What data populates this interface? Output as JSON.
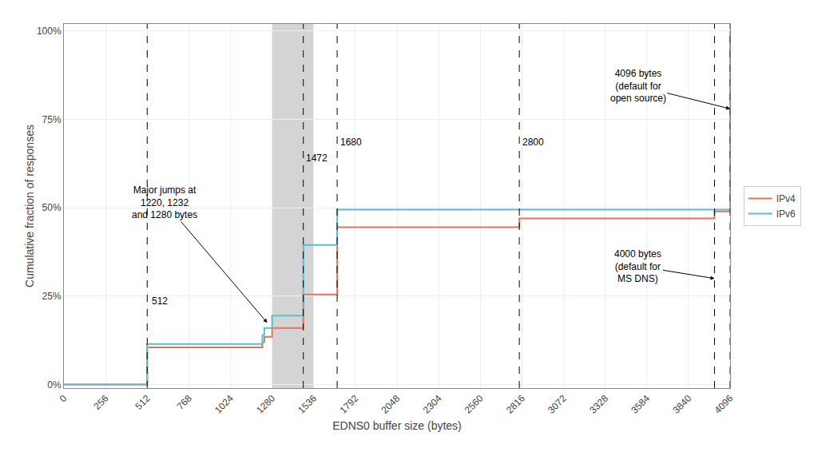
{
  "chart_data": {
    "type": "line",
    "xlabel": "EDNS0 buffer size (bytes)",
    "ylabel": "Cumulative fraction of responses",
    "series": [
      {
        "name": "IPv4",
        "color": "#E8735A",
        "x": [
          0,
          512,
          512,
          1220,
          1220,
          1232,
          1232,
          1280,
          1280,
          1472,
          1472,
          1680,
          1680,
          2800,
          2800,
          4000,
          4000,
          4096,
          4096
        ],
        "values": [
          0.0,
          0.0,
          0.105,
          0.105,
          0.12,
          0.12,
          0.135,
          0.135,
          0.16,
          0.16,
          0.255,
          0.255,
          0.445,
          0.445,
          0.47,
          0.47,
          0.49,
          0.49,
          1.0
        ]
      },
      {
        "name": "IPv6",
        "color": "#5BBCD6",
        "x": [
          0,
          512,
          512,
          1220,
          1220,
          1232,
          1232,
          1280,
          1280,
          1472,
          1472,
          1680,
          1680,
          2800,
          2800,
          4096,
          4096
        ],
        "values": [
          0.0,
          0.0,
          0.115,
          0.115,
          0.14,
          0.14,
          0.16,
          0.16,
          0.195,
          0.195,
          0.395,
          0.395,
          0.495,
          0.495,
          0.495,
          0.495,
          1.0
        ]
      }
    ],
    "xlim": [
      0,
      4096
    ],
    "ylim": [
      -0.01,
      1.02
    ],
    "xticks": [
      0,
      256,
      512,
      768,
      1024,
      1280,
      1536,
      1792,
      2048,
      2304,
      2560,
      2816,
      3072,
      3328,
      3584,
      3840,
      4096
    ],
    "yticks": [
      {
        "value": 0.0,
        "label": "0%"
      },
      {
        "value": 0.25,
        "label": "25%"
      },
      {
        "value": 0.5,
        "label": "50%"
      },
      {
        "value": 0.75,
        "label": "75%"
      },
      {
        "value": 1.0,
        "label": "100%"
      }
    ],
    "shaded_regions": [
      {
        "x0": 1280,
        "x1": 1536,
        "color": "#B8B8B8"
      }
    ],
    "vlines": [
      512,
      1472,
      1680,
      2800,
      4000,
      4096
    ],
    "annotations": [
      {
        "text": "512",
        "x": 530,
        "y": 0.215
      },
      {
        "text": "Major jumps at\n1220, 1232\nand 1280 bytes",
        "x": 620,
        "y": 0.515,
        "arrow_x": 1250,
        "arrow_y": 0.175
      },
      {
        "text": "1472",
        "x": 1480,
        "y": 0.62
      },
      {
        "text": "1680",
        "x": 1690,
        "y": 0.665
      },
      {
        "text": "2800",
        "x": 2810,
        "y": 0.665
      },
      {
        "text": "4096 bytes\n(default for\nopen source)",
        "x": 3530,
        "y": 0.845,
        "arrow_x": 4096,
        "arrow_y": 0.78
      },
      {
        "text": "4000 bytes\n(default for\nMS DNS)",
        "x": 3530,
        "y": 0.335,
        "arrow_x": 4000,
        "arrow_y": 0.3
      }
    ],
    "grid": true,
    "legend": "right"
  }
}
